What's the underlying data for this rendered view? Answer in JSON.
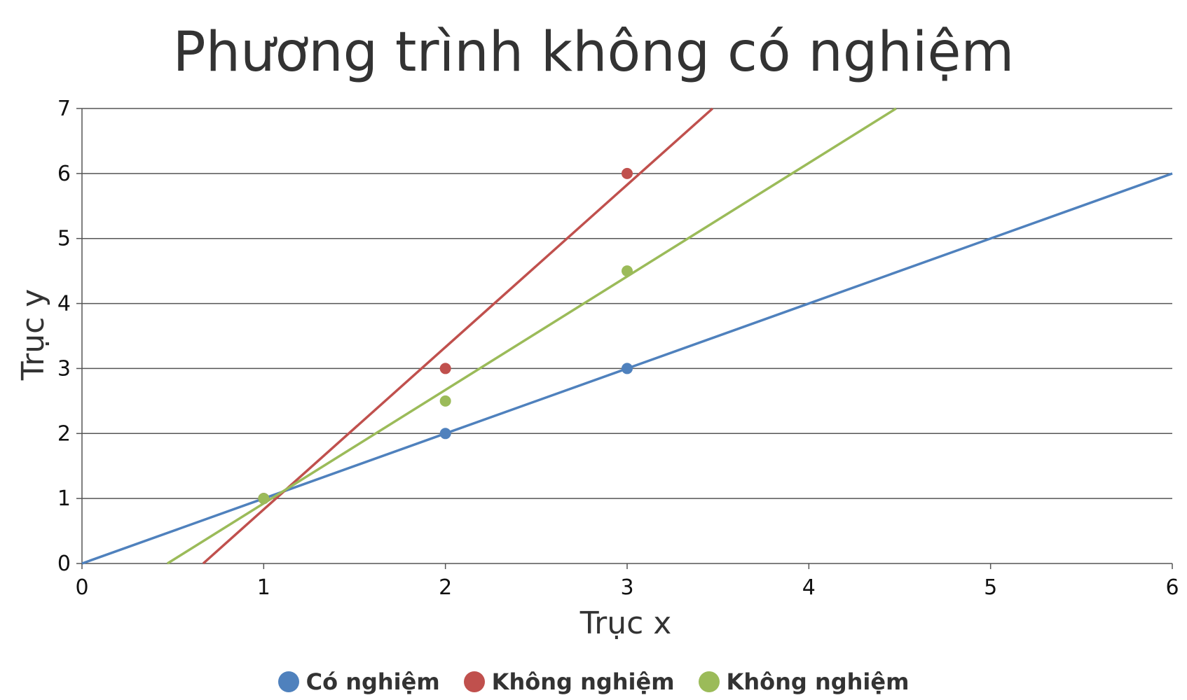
{
  "chart_data": {
    "type": "scatter",
    "title": "Phương trình không có nghiệm",
    "xlabel": "Trục x",
    "ylabel": "Trục y",
    "xlim": [
      0,
      6
    ],
    "ylim": [
      0,
      7
    ],
    "x_ticks": [
      "0",
      "1",
      "2",
      "3",
      "4",
      "5",
      "6"
    ],
    "y_ticks": [
      "0",
      "1",
      "2",
      "3",
      "4",
      "5",
      "6",
      "7"
    ],
    "grid": "horizontal",
    "legend_position": "bottom",
    "series": [
      {
        "name": "Có nghiệm",
        "color": "#4f81bd",
        "points": [
          {
            "x": 1,
            "y": 1
          },
          {
            "x": 2,
            "y": 2
          },
          {
            "x": 3,
            "y": 3
          }
        ],
        "trendline": [
          {
            "x": 0,
            "y": 0
          },
          {
            "x": 6,
            "y": 6
          }
        ]
      },
      {
        "name": "Không nghiệm",
        "color": "#c0504d",
        "points": [
          {
            "x": 1,
            "y": 1
          },
          {
            "x": 2,
            "y": 3
          },
          {
            "x": 3,
            "y": 6
          }
        ],
        "trendline": [
          {
            "x": 0.667,
            "y": 0
          },
          {
            "x": 3.47,
            "y": 7
          }
        ]
      },
      {
        "name": "Không nghiệm",
        "color": "#9bbb59",
        "points": [
          {
            "x": 1,
            "y": 1
          },
          {
            "x": 2,
            "y": 2.5
          },
          {
            "x": 3,
            "y": 4.5
          }
        ],
        "trendline": [
          {
            "x": 0.47,
            "y": 0
          },
          {
            "x": 4.48,
            "y": 7
          }
        ]
      }
    ]
  }
}
